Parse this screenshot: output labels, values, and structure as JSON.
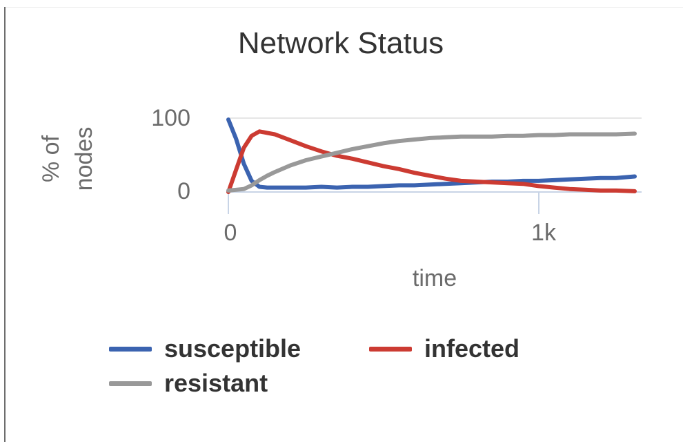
{
  "chart_data": {
    "type": "line",
    "title": "Network Status",
    "xlabel": "time",
    "ylabel_lines": [
      "% of",
      "nodes"
    ],
    "xlim": [
      0,
      1310
    ],
    "ylim": [
      0,
      100
    ],
    "x_ticks": [
      {
        "value": 0,
        "label": "0"
      },
      {
        "value": 1000,
        "label": "1k"
      }
    ],
    "y_ticks": [
      {
        "value": 0,
        "label": "0"
      },
      {
        "value": 100,
        "label": "100"
      }
    ],
    "grid": true,
    "legend_position": "bottom",
    "x": [
      0,
      25,
      50,
      75,
      100,
      125,
      150,
      200,
      250,
      300,
      350,
      400,
      450,
      500,
      550,
      600,
      650,
      700,
      750,
      800,
      850,
      900,
      950,
      1000,
      1050,
      1100,
      1150,
      1200,
      1250,
      1310
    ],
    "series": [
      {
        "name": "susceptible",
        "color": "#3b63b0",
        "values": [
          98,
          72,
          38,
          15,
          7,
          6,
          6,
          6,
          6,
          7,
          6,
          7,
          7,
          8,
          9,
          9,
          10,
          11,
          12,
          13,
          14,
          14,
          15,
          15,
          16,
          17,
          18,
          19,
          19,
          21
        ]
      },
      {
        "name": "infected",
        "color": "#cc3b32",
        "values": [
          0,
          30,
          60,
          76,
          82,
          80,
          78,
          70,
          62,
          55,
          49,
          45,
          40,
          35,
          31,
          26,
          22,
          18,
          15,
          14,
          13,
          12,
          11,
          8,
          6,
          4,
          3,
          2,
          2,
          1
        ]
      },
      {
        "name": "resistant",
        "color": "#999999",
        "values": [
          2,
          3,
          4,
          9,
          16,
          22,
          27,
          36,
          43,
          48,
          53,
          58,
          62,
          66,
          69,
          71,
          73,
          74,
          75,
          75,
          75,
          76,
          76,
          77,
          77,
          78,
          78,
          78,
          78,
          79
        ]
      }
    ]
  }
}
